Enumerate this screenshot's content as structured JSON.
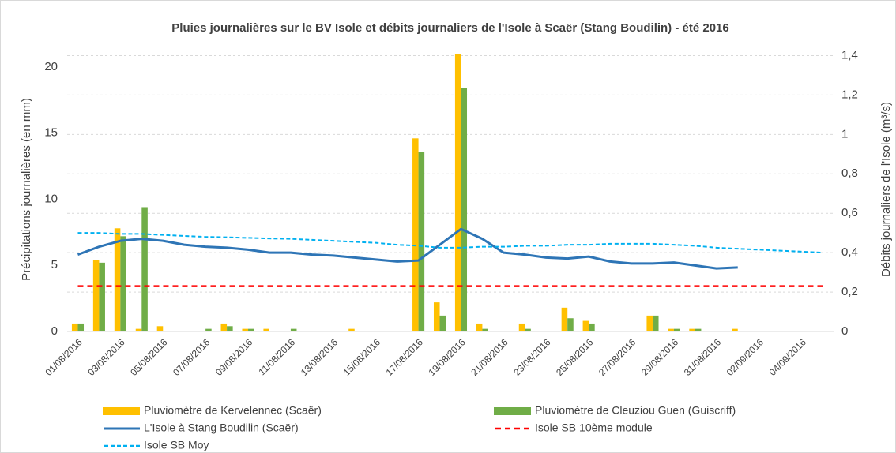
{
  "chart_data": {
    "type": "bar",
    "title": "Pluies journalières sur le BV Isole et débits journaliers de l'Isole à Scaër (Stang Boudilin) - été 2016",
    "ylabel": "Précipitations journalières (en mm)",
    "y2label": "Débits journaliers de l'Isole  (m³/s)",
    "categories": [
      "01/08/2016",
      null,
      "03/08/2016",
      null,
      "05/08/2016",
      null,
      "07/08/2016",
      null,
      "09/08/2016",
      null,
      "11/08/2016",
      null,
      "13/08/2016",
      null,
      "15/08/2016",
      null,
      "17/08/2016",
      null,
      "19/08/2016",
      null,
      "21/08/2016",
      null,
      "23/08/2016",
      null,
      "25/08/2016",
      null,
      "27/08/2016",
      null,
      "29/08/2016",
      null,
      "31/08/2016",
      null,
      "02/09/2016",
      null,
      "04/09/2016",
      null
    ],
    "ylim": [
      0,
      21.6
    ],
    "yticks": [
      0,
      5,
      10,
      15,
      20
    ],
    "y2lim": [
      0,
      1.45
    ],
    "y2ticks": [
      0,
      {
        "value": 0.2,
        "label": "0,2"
      },
      {
        "value": 0.4,
        "label": "0,4"
      },
      {
        "value": 0.6,
        "label": "0,6"
      },
      {
        "value": 0.8,
        "label": "0,8"
      },
      1,
      {
        "value": 1.2,
        "label": "1,2"
      },
      {
        "value": 1.4,
        "label": "1,4"
      }
    ],
    "grid": true,
    "series": [
      {
        "name": "Pluviomètre de Kervelennec (Scaër)",
        "type": "bar",
        "color": "#ffc000",
        "values": [
          0.6,
          5.4,
          7.8,
          0.2,
          0.4,
          0,
          0,
          0.6,
          0.2,
          0.2,
          0,
          0,
          0,
          0.2,
          0,
          0,
          14.6,
          2.2,
          21.0,
          0.6,
          0,
          0.6,
          0,
          1.8,
          0.8,
          0,
          0,
          1.2,
          0.2,
          0.2,
          0,
          0.2,
          0,
          0,
          0,
          0
        ]
      },
      {
        "name": "Pluviomètre de Cleuziou Guen (Guiscriff)",
        "type": "bar",
        "color": "#70ad47",
        "values": [
          0.6,
          5.2,
          7.2,
          9.4,
          0,
          0,
          0.2,
          0.4,
          0.2,
          0,
          0.2,
          0,
          0,
          0,
          0,
          0,
          13.6,
          1.2,
          18.4,
          0.2,
          0,
          0.2,
          0,
          1.0,
          0.6,
          0,
          0,
          1.2,
          0.2,
          0.2,
          0,
          0,
          0,
          0,
          0,
          0
        ]
      },
      {
        "name": "L'Isole à Stang Boudilin (Scaër)",
        "type": "line",
        "axis": "y2",
        "color": "#2e75b6",
        "dash": "solid",
        "values": [
          0.39,
          0.43,
          0.46,
          0.47,
          0.46,
          0.44,
          0.43,
          0.425,
          0.415,
          0.4,
          0.4,
          0.39,
          0.385,
          0.375,
          0.365,
          0.355,
          0.36,
          0.44,
          0.52,
          0.47,
          0.4,
          0.39,
          0.375,
          0.37,
          0.38,
          0.355,
          0.345,
          0.345,
          0.35,
          0.335,
          0.32,
          0.325,
          null,
          null,
          null,
          null
        ]
      },
      {
        "name": "Isole SB 10ème module",
        "type": "line",
        "axis": "y2",
        "color": "#ff0000",
        "dash": "dashed",
        "values": [
          0.23,
          0.23,
          0.23,
          0.23,
          0.23,
          0.23,
          0.23,
          0.23,
          0.23,
          0.23,
          0.23,
          0.23,
          0.23,
          0.23,
          0.23,
          0.23,
          0.23,
          0.23,
          0.23,
          0.23,
          0.23,
          0.23,
          0.23,
          0.23,
          0.23,
          0.23,
          0.23,
          0.23,
          0.23,
          0.23,
          0.23,
          0.23,
          0.23,
          0.23,
          0.23,
          0.23
        ]
      },
      {
        "name": "Isole SB Moy",
        "type": "line",
        "axis": "y2",
        "color": "#00b0f0",
        "dash": "dotted",
        "values": [
          0.5,
          0.5,
          0.495,
          0.495,
          0.49,
          0.485,
          0.48,
          0.478,
          0.475,
          0.472,
          0.47,
          0.465,
          0.46,
          0.455,
          0.45,
          0.44,
          0.435,
          0.425,
          0.425,
          0.43,
          0.43,
          0.435,
          0.435,
          0.44,
          0.44,
          0.445,
          0.445,
          0.445,
          0.44,
          0.435,
          0.425,
          0.42,
          0.415,
          0.41,
          0.405,
          0.4
        ]
      }
    ]
  }
}
